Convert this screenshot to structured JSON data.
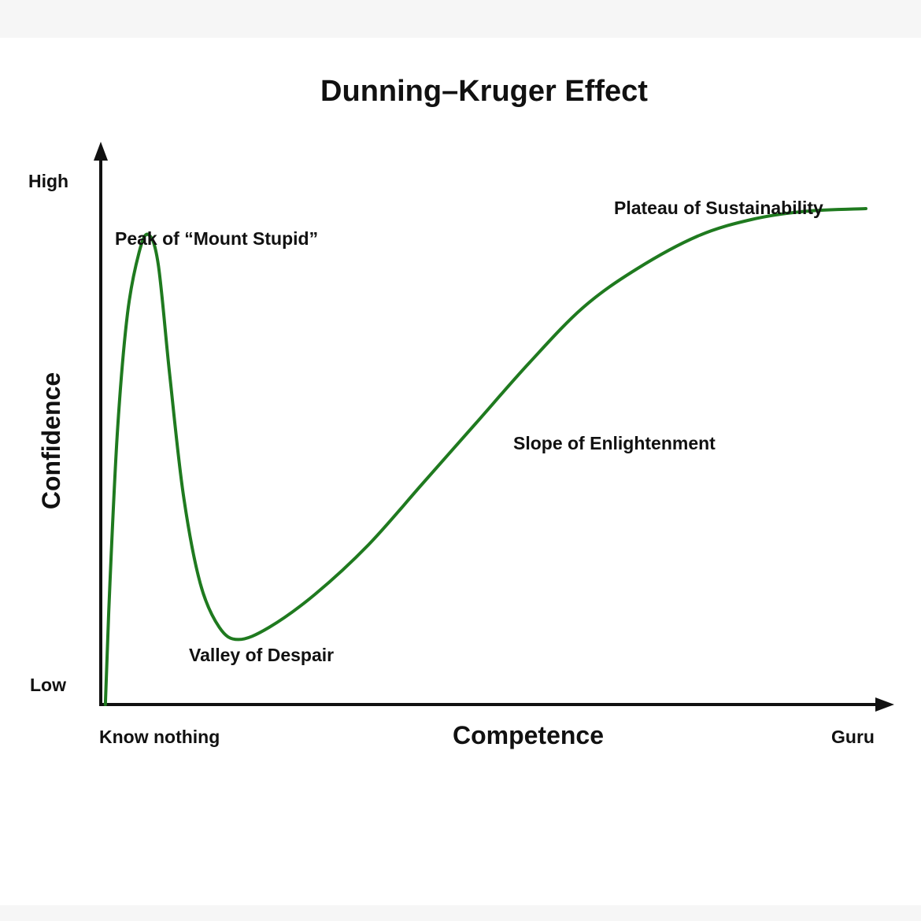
{
  "chart_data": {
    "type": "line",
    "title": "Dunning–Kruger Effect",
    "xlabel": "Competence",
    "ylabel": "Confidence",
    "x_tick_labels": [
      "Know nothing",
      "Guru"
    ],
    "y_tick_labels": [
      "High",
      "Low"
    ],
    "xlim": [
      0,
      1
    ],
    "ylim": [
      0,
      1
    ],
    "grid": false,
    "series": [
      {
        "color": "#1f7a1f",
        "points": [
          [
            0.006,
            0.0
          ],
          [
            0.012,
            0.22
          ],
          [
            0.022,
            0.5
          ],
          [
            0.035,
            0.71
          ],
          [
            0.05,
            0.82
          ],
          [
            0.062,
            0.853
          ],
          [
            0.075,
            0.8
          ],
          [
            0.09,
            0.6
          ],
          [
            0.108,
            0.38
          ],
          [
            0.13,
            0.22
          ],
          [
            0.155,
            0.14
          ],
          [
            0.18,
            0.118
          ],
          [
            0.22,
            0.14
          ],
          [
            0.28,
            0.2
          ],
          [
            0.35,
            0.29
          ],
          [
            0.42,
            0.4
          ],
          [
            0.49,
            0.51
          ],
          [
            0.56,
            0.62
          ],
          [
            0.63,
            0.72
          ],
          [
            0.7,
            0.79
          ],
          [
            0.78,
            0.85
          ],
          [
            0.85,
            0.88
          ],
          [
            0.92,
            0.895
          ],
          [
            1.0,
            0.9
          ]
        ]
      }
    ],
    "annotations": [
      {
        "text": "Peak of “Mount Stupid”",
        "x": 0.062,
        "y": 0.853
      },
      {
        "text": "Valley of Despair",
        "x": 0.18,
        "y": 0.118
      },
      {
        "text": "Slope of Enlightenment",
        "x": 0.56,
        "y": 0.62
      },
      {
        "text": "Plateau of Sustainability",
        "x": 0.85,
        "y": 0.88
      }
    ]
  }
}
